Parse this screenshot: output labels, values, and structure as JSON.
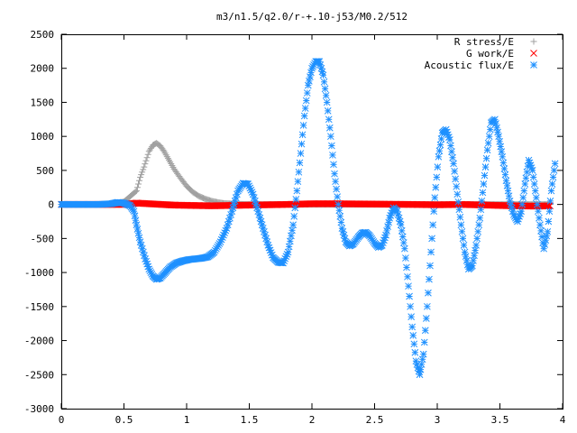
{
  "chart_data": {
    "type": "scatter",
    "title": "m3/n1.5/q2.0/r-+.10-j53/M0.2/512",
    "xlabel": "",
    "ylabel": "",
    "xlim": [
      0,
      4
    ],
    "ylim": [
      -3000,
      2500
    ],
    "x_ticks": [
      "0",
      "0.5",
      "1",
      "1.5",
      "2",
      "2.5",
      "3",
      "3.5",
      "4"
    ],
    "y_ticks": [
      "2500",
      "2000",
      "1500",
      "1000",
      "500",
      "0",
      "-500",
      "-1000",
      "-1500",
      "-2000",
      "-2500",
      "-3000"
    ],
    "grid": false,
    "legend_position": "top-right",
    "series": [
      {
        "name": "R stress/E",
        "marker": "plus",
        "color": "#a0a0a0",
        "points": [
          [
            0.0,
            0
          ],
          [
            0.4,
            0
          ],
          [
            0.5,
            40
          ],
          [
            0.55,
            120
          ],
          [
            0.6,
            200
          ],
          [
            0.63,
            400
          ],
          [
            0.66,
            550
          ],
          [
            0.7,
            780
          ],
          [
            0.73,
            870
          ],
          [
            0.76,
            900
          ],
          [
            0.79,
            860
          ],
          [
            0.82,
            780
          ],
          [
            0.86,
            650
          ],
          [
            0.9,
            520
          ],
          [
            0.95,
            390
          ],
          [
            1.0,
            270
          ],
          [
            1.05,
            180
          ],
          [
            1.1,
            120
          ],
          [
            1.15,
            80
          ],
          [
            1.2,
            50
          ],
          [
            1.25,
            30
          ],
          [
            1.3,
            15
          ],
          [
            1.4,
            5
          ],
          [
            1.5,
            0
          ],
          [
            2.0,
            0
          ],
          [
            3.0,
            0
          ],
          [
            3.9,
            0
          ]
        ]
      },
      {
        "name": "G work/E",
        "marker": "cross",
        "color": "#ff0000",
        "points": [
          [
            0.0,
            0
          ],
          [
            0.5,
            0
          ],
          [
            0.6,
            20
          ],
          [
            0.7,
            10
          ],
          [
            0.9,
            -10
          ],
          [
            1.2,
            -20
          ],
          [
            1.5,
            -10
          ],
          [
            1.8,
            0
          ],
          [
            2.0,
            10
          ],
          [
            2.2,
            10
          ],
          [
            2.5,
            5
          ],
          [
            2.8,
            0
          ],
          [
            3.0,
            -5
          ],
          [
            3.2,
            0
          ],
          [
            3.4,
            -10
          ],
          [
            3.6,
            -20
          ],
          [
            3.8,
            -25
          ],
          [
            3.9,
            -20
          ]
        ]
      },
      {
        "name": "Acoustic flux/E",
        "marker": "star",
        "color": "#1e90ff",
        "points": [
          [
            0.0,
            0
          ],
          [
            0.3,
            0
          ],
          [
            0.4,
            10
          ],
          [
            0.45,
            30
          ],
          [
            0.5,
            20
          ],
          [
            0.55,
            -20
          ],
          [
            0.58,
            -100
          ],
          [
            0.6,
            -300
          ],
          [
            0.63,
            -550
          ],
          [
            0.67,
            -800
          ],
          [
            0.7,
            -950
          ],
          [
            0.73,
            -1050
          ],
          [
            0.76,
            -1100
          ],
          [
            0.79,
            -1080
          ],
          [
            0.83,
            -1000
          ],
          [
            0.87,
            -920
          ],
          [
            0.92,
            -860
          ],
          [
            0.97,
            -830
          ],
          [
            1.02,
            -810
          ],
          [
            1.07,
            -800
          ],
          [
            1.12,
            -790
          ],
          [
            1.17,
            -770
          ],
          [
            1.22,
            -700
          ],
          [
            1.27,
            -550
          ],
          [
            1.32,
            -350
          ],
          [
            1.37,
            -50
          ],
          [
            1.41,
            200
          ],
          [
            1.45,
            310
          ],
          [
            1.49,
            300
          ],
          [
            1.53,
            150
          ],
          [
            1.57,
            -100
          ],
          [
            1.61,
            -350
          ],
          [
            1.65,
            -600
          ],
          [
            1.69,
            -780
          ],
          [
            1.73,
            -850
          ],
          [
            1.77,
            -860
          ],
          [
            1.81,
            -700
          ],
          [
            1.85,
            -300
          ],
          [
            1.88,
            200
          ],
          [
            1.91,
            750
          ],
          [
            1.94,
            1300
          ],
          [
            1.97,
            1750
          ],
          [
            2.0,
            2000
          ],
          [
            2.03,
            2100
          ],
          [
            2.06,
            2100
          ],
          [
            2.09,
            1900
          ],
          [
            2.12,
            1500
          ],
          [
            2.15,
            1000
          ],
          [
            2.18,
            450
          ],
          [
            2.21,
            0
          ],
          [
            2.24,
            -350
          ],
          [
            2.27,
            -550
          ],
          [
            2.3,
            -610
          ],
          [
            2.33,
            -580
          ],
          [
            2.37,
            -480
          ],
          [
            2.4,
            -420
          ],
          [
            2.43,
            -410
          ],
          [
            2.46,
            -460
          ],
          [
            2.5,
            -570
          ],
          [
            2.53,
            -630
          ],
          [
            2.56,
            -600
          ],
          [
            2.59,
            -450
          ],
          [
            2.62,
            -200
          ],
          [
            2.65,
            -50
          ],
          [
            2.68,
            -100
          ],
          [
            2.71,
            -300
          ],
          [
            2.74,
            -650
          ],
          [
            2.77,
            -1200
          ],
          [
            2.8,
            -1800
          ],
          [
            2.83,
            -2300
          ],
          [
            2.86,
            -2500
          ],
          [
            2.89,
            -2200
          ],
          [
            2.92,
            -1500
          ],
          [
            2.95,
            -700
          ],
          [
            2.98,
            100
          ],
          [
            3.01,
            700
          ],
          [
            3.04,
            1050
          ],
          [
            3.07,
            1100
          ],
          [
            3.1,
            950
          ],
          [
            3.13,
            600
          ],
          [
            3.16,
            150
          ],
          [
            3.19,
            -300
          ],
          [
            3.22,
            -700
          ],
          [
            3.25,
            -950
          ],
          [
            3.28,
            -900
          ],
          [
            3.31,
            -600
          ],
          [
            3.34,
            -200
          ],
          [
            3.37,
            300
          ],
          [
            3.4,
            800
          ],
          [
            3.43,
            1200
          ],
          [
            3.46,
            1250
          ],
          [
            3.49,
            1000
          ],
          [
            3.52,
            700
          ],
          [
            3.55,
            350
          ],
          [
            3.58,
            50
          ],
          [
            3.61,
            -150
          ],
          [
            3.64,
            -250
          ],
          [
            3.67,
            -100
          ],
          [
            3.7,
            300
          ],
          [
            3.73,
            650
          ],
          [
            3.76,
            500
          ],
          [
            3.79,
            100
          ],
          [
            3.82,
            -300
          ],
          [
            3.85,
            -650
          ],
          [
            3.88,
            -400
          ],
          [
            3.91,
            200
          ],
          [
            3.94,
            600
          ]
        ]
      }
    ]
  }
}
